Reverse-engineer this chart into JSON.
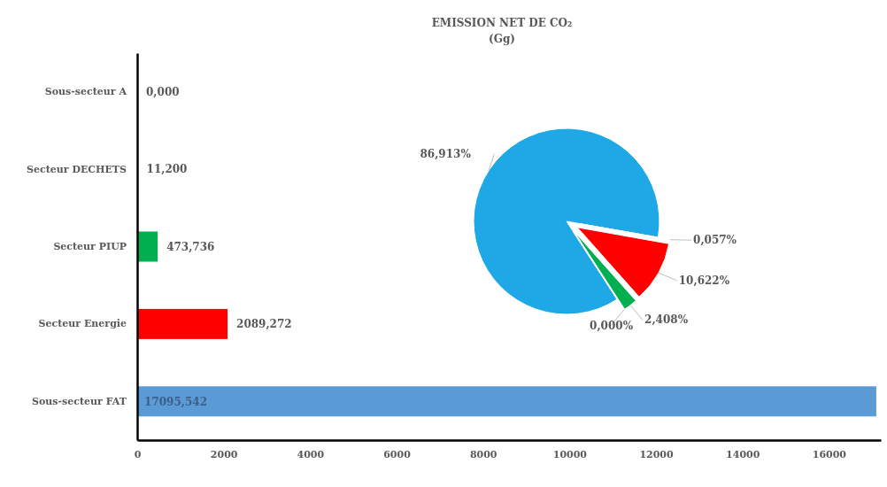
{
  "chart_data": [
    {
      "type": "bar",
      "orientation": "horizontal",
      "categories": [
        "Sous-secteur A",
        "Secteur DECHETS",
        "Secteur PIUP",
        "Secteur Energie",
        "Sous-secteur FAT"
      ],
      "values": [
        0,
        11.2,
        473.736,
        2089.272,
        17095.542
      ],
      "colors": [
        "#a5a5a5",
        "#375623",
        "#00b050",
        "#ff0000",
        "#5b9bd5"
      ],
      "value_labels": [
        "0,000",
        "11,200",
        "473,736",
        "2089,272",
        "17095,542"
      ],
      "xlim": [
        0,
        17200
      ],
      "xticks": [
        0,
        2000,
        4000,
        6000,
        8000,
        10000,
        12000,
        14000,
        16000
      ]
    },
    {
      "type": "pie",
      "title": "EMISSION NET DE CO₂",
      "subtitle": "(Gg)",
      "categories": [
        null,
        null,
        null,
        null,
        null
      ],
      "values": [
        86.913,
        0.057,
        10.622,
        2.408,
        0.0
      ],
      "colors": [
        "#1ea8e6",
        "#375623",
        "#ff0000",
        "#00b050",
        "#a5a5a5"
      ],
      "value_labels": [
        "86,913%",
        "0,057%",
        "10,622%",
        "2,408%",
        "0,000%"
      ]
    }
  ]
}
